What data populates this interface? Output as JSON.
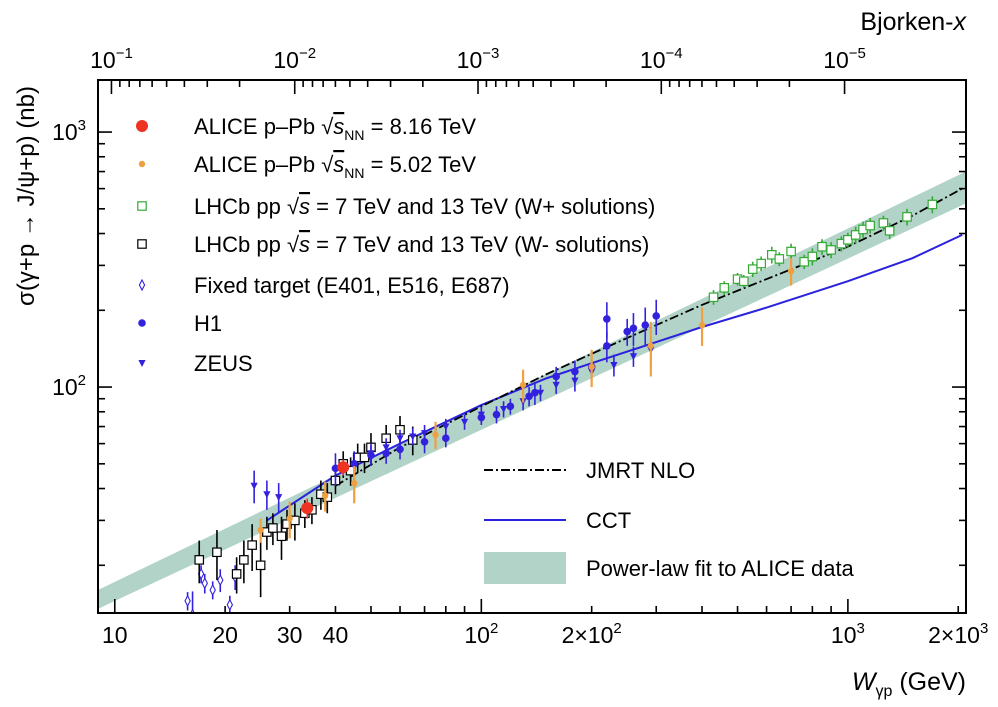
{
  "chart_data": {
    "type": "scatter",
    "title": "",
    "xlabel": {
      "main": "W",
      "sub": "γp",
      "unit": " (GeV)"
    },
    "ylabel": "σ(γ+p → J/ψ+p) (nb)",
    "x2label": {
      "main": "Bjorken-",
      "italic": "x"
    },
    "xscale": "log",
    "yscale": "log",
    "xlim": [
      9,
      2100
    ],
    "ylim": [
      13,
      1600
    ],
    "x_ticks": [
      {
        "value": 10,
        "label": "10"
      },
      {
        "value": 20,
        "label": "20"
      },
      {
        "value": 30,
        "label": "30"
      },
      {
        "value": 40,
        "label": "40"
      },
      {
        "value": 100,
        "label": "10",
        "sup": "2"
      },
      {
        "value": 200,
        "label": "2×10",
        "sup": "2"
      },
      {
        "value": 1000,
        "label": "10",
        "sup": "3"
      },
      {
        "value": 2000,
        "label": "2×10",
        "sup": "3"
      }
    ],
    "y_ticks": [
      {
        "value": 100,
        "label": "10",
        "sup": "2"
      },
      {
        "value": 1000,
        "label": "10",
        "sup": "3"
      }
    ],
    "x2_ticks": [
      {
        "value": 0.1,
        "label": "10",
        "sup": "−1"
      },
      {
        "value": 0.01,
        "label": "10",
        "sup": "−2"
      },
      {
        "value": 0.001,
        "label": "10",
        "sup": "−3"
      },
      {
        "value": 0.0001,
        "label": "10",
        "sup": "−4"
      },
      {
        "value": 1e-05,
        "label": "10",
        "sup": "−5"
      }
    ],
    "legend_top": [
      {
        "key": "alice816",
        "pre": "ALICE p–Pb ",
        "root": "s",
        "sub": "NN",
        "post": " = 8.16 TeV"
      },
      {
        "key": "alice502",
        "pre": "ALICE p–Pb ",
        "root": "s",
        "sub": "NN",
        "post": " = 5.02 TeV"
      },
      {
        "key": "lhcbWp",
        "pre": "LHCb pp ",
        "root": "s",
        "sub": "",
        "post": " = 7 TeV and 13 TeV (W+ solutions)"
      },
      {
        "key": "lhcbWm",
        "pre": "LHCb pp ",
        "root": "s",
        "sub": "",
        "post": " = 7 TeV and 13 TeV (W- solutions)"
      },
      {
        "key": "fixed",
        "pre": "Fixed target (E401, E516, E687)",
        "root": "",
        "sub": "",
        "post": ""
      },
      {
        "key": "h1",
        "pre": "H1",
        "root": "",
        "sub": "",
        "post": ""
      },
      {
        "key": "zeus",
        "pre": "ZEUS",
        "root": "",
        "sub": "",
        "post": ""
      }
    ],
    "legend_bottom": [
      {
        "key": "jmrt",
        "label": "JMRT NLO"
      },
      {
        "key": "cct",
        "label": "CCT"
      },
      {
        "key": "band",
        "label": "Power-law fit to ALICE data"
      }
    ],
    "colors": {
      "alice816": "#ee3322",
      "alice502": "#f0a040",
      "lhcbWp": "#33aa33",
      "lhcbWm": "#000000",
      "fixed": "#3322dd",
      "h1": "#3322dd",
      "zeus": "#3322dd",
      "cct": "#2a22dd",
      "jmrt": "#000000",
      "band": "#b2d3c8"
    },
    "band": {
      "W": [
        9,
        2100
      ],
      "lower": [
        13.5,
        525
      ],
      "upper": [
        16,
        700
      ]
    },
    "cct_curve": {
      "W": [
        26,
        40,
        60,
        100,
        150,
        200,
        300,
        400,
        600,
        1000,
        1500,
        2050
      ],
      "sigma": [
        30,
        45,
        60,
        85,
        108,
        124,
        150,
        172,
        205,
        260,
        320,
        395
      ]
    },
    "jmrt_curve": {
      "W": [
        40,
        60,
        100,
        150,
        200,
        300,
        400,
        600,
        1000,
        1500,
        2050
      ],
      "sigma": [
        41,
        58,
        84,
        112,
        135,
        175,
        210,
        265,
        355,
        470,
        600
      ]
    },
    "series": {
      "fixed": [
        [
          15.8,
          14.5,
          1.2
        ],
        [
          17.2,
          18.5,
          1.5
        ],
        [
          17.6,
          17,
          1.5
        ],
        [
          18.5,
          16,
          1.3
        ],
        [
          19.4,
          17.5,
          1.8
        ],
        [
          20.6,
          14,
          1.2
        ],
        [
          21.3,
          18,
          2
        ],
        [
          16.3,
          12.8,
          3
        ]
      ],
      "lhcbWm": [
        [
          17,
          21,
          4
        ],
        [
          19,
          22.5,
          5
        ],
        [
          21.5,
          18.5,
          3
        ],
        [
          22.5,
          21,
          4
        ],
        [
          23.7,
          24,
          5
        ],
        [
          25,
          20,
          5
        ],
        [
          26,
          27,
          4
        ],
        [
          27,
          28,
          4
        ],
        [
          28.5,
          26,
          5
        ],
        [
          29.5,
          29,
          4
        ],
        [
          31,
          30,
          5
        ],
        [
          33,
          32,
          4
        ],
        [
          34.5,
          33,
          4
        ],
        [
          36.5,
          38,
          5
        ],
        [
          38,
          37,
          5
        ],
        [
          40,
          43,
          5
        ],
        [
          42,
          50,
          6
        ],
        [
          44,
          47,
          6
        ],
        [
          46,
          53,
          7
        ],
        [
          48,
          53,
          7
        ],
        [
          50,
          58,
          8
        ],
        [
          55,
          63,
          8
        ],
        [
          60,
          68,
          9
        ],
        [
          65,
          62,
          8
        ]
      ],
      "lhcbWp": [
        [
          430,
          225,
          15
        ],
        [
          460,
          245,
          15
        ],
        [
          500,
          265,
          15
        ],
        [
          520,
          260,
          15
        ],
        [
          550,
          290,
          20
        ],
        [
          580,
          305,
          20
        ],
        [
          620,
          330,
          25
        ],
        [
          650,
          318,
          20
        ],
        [
          700,
          340,
          25
        ],
        [
          760,
          310,
          20
        ],
        [
          800,
          325,
          25
        ],
        [
          850,
          355,
          25
        ],
        [
          900,
          345,
          25
        ],
        [
          960,
          365,
          25
        ],
        [
          1000,
          378,
          25
        ],
        [
          1050,
          395,
          30
        ],
        [
          1100,
          415,
          30
        ],
        [
          1150,
          430,
          30
        ],
        [
          1250,
          440,
          30
        ],
        [
          1300,
          410,
          30
        ],
        [
          1450,
          465,
          35
        ],
        [
          1700,
          520,
          40
        ]
      ],
      "h1": [
        [
          40,
          48,
          7
        ],
        [
          45,
          50,
          6
        ],
        [
          50,
          54,
          5
        ],
        [
          55,
          55,
          5
        ],
        [
          60,
          57,
          5
        ],
        [
          70,
          61,
          6
        ],
        [
          80,
          63,
          5
        ],
        [
          100,
          76,
          5
        ],
        [
          110,
          78,
          6
        ],
        [
          120,
          84,
          6
        ],
        [
          135,
          92,
          8
        ],
        [
          140,
          95,
          10
        ],
        [
          160,
          110,
          10
        ],
        [
          180,
          115,
          12
        ],
        [
          200,
          120,
          15
        ],
        [
          220,
          145,
          20
        ],
        [
          250,
          165,
          20
        ],
        [
          260,
          170,
          25
        ],
        [
          280,
          175,
          30
        ],
        [
          220,
          185,
          30
        ],
        [
          300,
          190,
          30
        ]
      ],
      "zeus": [
        [
          24,
          41,
          6
        ],
        [
          26,
          38,
          5
        ],
        [
          28,
          37,
          5
        ],
        [
          50,
          55,
          5
        ],
        [
          55,
          58,
          5
        ],
        [
          60,
          63,
          5
        ],
        [
          65,
          64,
          5
        ],
        [
          70,
          66,
          5
        ],
        [
          80,
          70,
          5
        ],
        [
          90,
          73,
          5
        ],
        [
          100,
          78,
          6
        ],
        [
          115,
          82,
          6
        ],
        [
          130,
          88,
          7
        ],
        [
          145,
          95,
          7
        ],
        [
          160,
          102,
          8
        ],
        [
          180,
          106,
          10
        ],
        [
          200,
          115,
          10
        ],
        [
          230,
          122,
          12
        ],
        [
          260,
          132,
          12
        ],
        [
          290,
          140,
          15
        ]
      ],
      "alice502": [
        [
          25,
          27.5,
          3
        ],
        [
          30,
          30.5,
          5
        ],
        [
          37.5,
          37.5,
          5
        ],
        [
          45,
          42,
          7
        ],
        [
          75,
          65,
          8
        ],
        [
          130,
          102,
          15
        ],
        [
          200,
          120,
          20
        ],
        [
          290,
          145,
          35
        ],
        [
          400,
          175,
          30
        ],
        [
          700,
          285,
          35
        ]
      ],
      "alice816": [
        [
          33.5,
          33.5,
          3
        ],
        [
          42,
          48.5,
          3.5
        ]
      ]
    }
  }
}
